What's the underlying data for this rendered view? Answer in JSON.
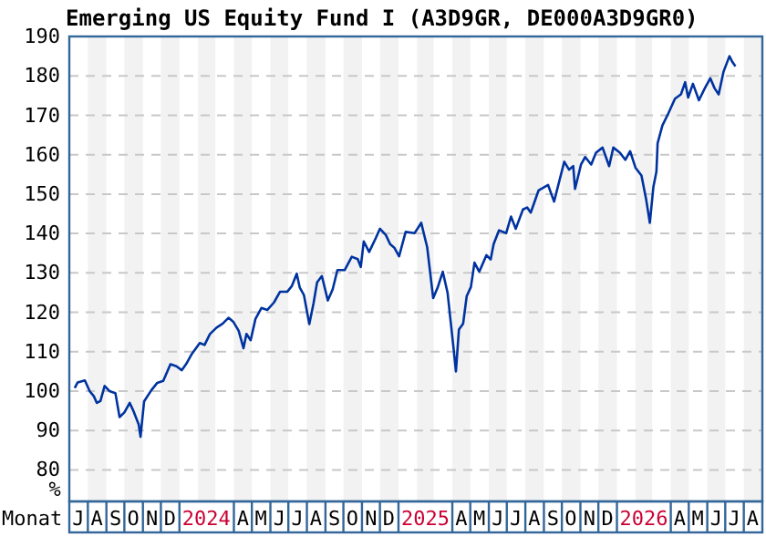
{
  "chart_data": {
    "type": "line",
    "title": "Emerging US Equity Fund I (A3D9GR, DE000A3D9GR0)",
    "xlabel": "Monat",
    "ylabel": "%",
    "x": [
      "2023-07-10",
      "2023-07-15",
      "2023-07-27",
      "2023-08-04",
      "2023-08-11",
      "2023-08-16",
      "2023-08-22",
      "2023-08-29",
      "2023-09-06",
      "2023-09-16",
      "2023-09-23",
      "2023-10-01",
      "2023-10-10",
      "2023-10-16",
      "2023-10-25",
      "2023-10-28",
      "2023-11-03",
      "2023-11-15",
      "2023-11-25",
      "2023-12-05",
      "2023-12-17",
      "2023-12-27",
      "2024-01-05",
      "2024-01-12",
      "2024-01-22",
      "2024-02-04",
      "2024-02-12",
      "2024-02-21",
      "2024-03-03",
      "2024-03-13",
      "2024-03-23",
      "2024-03-31",
      "2024-04-09",
      "2024-04-17",
      "2024-04-22",
      "2024-04-29",
      "2024-05-07",
      "2024-05-17",
      "2024-05-27",
      "2024-06-07",
      "2024-06-17",
      "2024-06-29",
      "2024-07-07",
      "2024-07-15",
      "2024-07-20",
      "2024-07-27",
      "2024-08-05",
      "2024-08-12",
      "2024-08-18",
      "2024-08-26",
      "2024-09-05",
      "2024-09-13",
      "2024-09-21",
      "2024-10-03",
      "2024-10-15",
      "2024-10-25",
      "2024-10-30",
      "2024-11-04",
      "2024-11-13",
      "2024-11-24",
      "2024-12-01",
      "2024-12-11",
      "2024-12-18",
      "2024-12-25",
      "2025-01-02",
      "2025-01-13",
      "2025-01-28",
      "2025-02-08",
      "2025-02-18",
      "2025-02-28",
      "2025-03-08",
      "2025-03-16",
      "2025-03-24",
      "2025-04-03",
      "2025-04-07",
      "2025-04-12",
      "2025-04-19",
      "2025-04-25",
      "2025-05-02",
      "2025-05-08",
      "2025-05-16",
      "2025-05-28",
      "2025-06-04",
      "2025-06-09",
      "2025-06-18",
      "2025-06-30",
      "2025-07-08",
      "2025-07-16",
      "2025-07-28",
      "2025-08-04",
      "2025-08-10",
      "2025-08-23",
      "2025-09-08",
      "2025-09-18",
      "2025-10-05",
      "2025-10-13",
      "2025-10-20",
      "2025-10-23",
      "2025-11-02",
      "2025-11-09",
      "2025-11-19",
      "2025-11-27",
      "2025-12-08",
      "2025-12-19",
      "2025-12-26",
      "2026-01-06",
      "2026-01-15",
      "2026-01-23",
      "2026-02-01",
      "2026-02-11",
      "2026-02-19",
      "2026-02-25",
      "2026-03-03",
      "2026-03-08",
      "2026-03-10",
      "2026-03-18",
      "2026-03-28",
      "2026-04-08",
      "2026-04-18",
      "2026-04-25",
      "2026-04-30",
      "2026-05-08",
      "2026-05-18",
      "2026-05-28",
      "2026-06-06",
      "2026-06-13",
      "2026-06-20",
      "2026-06-28",
      "2026-07-08",
      "2026-07-13",
      "2026-07-18"
    ],
    "series": [
      {
        "color": "#0033a0",
        "values": [
          100.8,
          102.2,
          102.7,
          100,
          98.7,
          97,
          97.5,
          101.3,
          100,
          99.5,
          93.4,
          94.6,
          97,
          95,
          91.5,
          88.4,
          97.4,
          100.2,
          102.1,
          102.6,
          106.8,
          106.3,
          105.3,
          106.8,
          109.5,
          112.2,
          111.7,
          114.5,
          116.1,
          117.1,
          118.6,
          117.6,
          115.3,
          110.9,
          114.5,
          112.9,
          118.3,
          121.1,
          120.6,
          122.5,
          125.2,
          125.2,
          126.7,
          129.8,
          126.3,
          124.4,
          117,
          122.2,
          127.6,
          129.2,
          123,
          125.8,
          130.7,
          130.7,
          134.1,
          133.5,
          131.5,
          138,
          135.3,
          138.8,
          141.2,
          139.6,
          137.3,
          136.4,
          134.2,
          140.4,
          140.1,
          142.7,
          136.5,
          123.6,
          126.5,
          130.3,
          125,
          110.9,
          105,
          115.6,
          117.1,
          124.1,
          126.4,
          132.6,
          130.3,
          134.5,
          133.4,
          137.3,
          140.8,
          140.1,
          144.3,
          141.2,
          146.1,
          146.6,
          145.3,
          150.9,
          152.3,
          148.1,
          158.2,
          156.2,
          157.1,
          151.3,
          157.5,
          159.4,
          157.5,
          160.5,
          161.8,
          157.1,
          161.8,
          160.5,
          158.7,
          160.9,
          156.7,
          154.7,
          148.5,
          142.7,
          151.9,
          155.7,
          162.9,
          167.4,
          170.5,
          174.2,
          175.3,
          178.4,
          174.5,
          178,
          173.8,
          176.9,
          179.4,
          176.9,
          175.3,
          181,
          185,
          183.5,
          182.4
        ]
      }
    ],
    "xlim": [
      "2023-07-01",
      "2026-09-01"
    ],
    "xticks": [
      {
        "value": "2023-07-16",
        "label": "J"
      },
      {
        "value": "2023-08-16",
        "label": "A"
      },
      {
        "value": "2023-09-16",
        "label": "S"
      },
      {
        "value": "2023-10-16",
        "label": "O"
      },
      {
        "value": "2023-11-16",
        "label": "N"
      },
      {
        "value": "2023-12-16",
        "label": "D"
      },
      {
        "value": "2024-02-15",
        "label": "2024"
      },
      {
        "value": "2024-04-16",
        "label": "A"
      },
      {
        "value": "2024-05-16",
        "label": "M"
      },
      {
        "value": "2024-06-16",
        "label": "J"
      },
      {
        "value": "2024-07-16",
        "label": "J"
      },
      {
        "value": "2024-08-16",
        "label": "A"
      },
      {
        "value": "2024-09-16",
        "label": "S"
      },
      {
        "value": "2024-10-16",
        "label": "O"
      },
      {
        "value": "2024-11-16",
        "label": "N"
      },
      {
        "value": "2024-12-16",
        "label": "D"
      },
      {
        "value": "2025-02-15",
        "label": "2025"
      },
      {
        "value": "2025-04-16",
        "label": "A"
      },
      {
        "value": "2025-05-16",
        "label": "M"
      },
      {
        "value": "2025-06-16",
        "label": "J"
      },
      {
        "value": "2025-07-16",
        "label": "J"
      },
      {
        "value": "2025-08-16",
        "label": "A"
      },
      {
        "value": "2025-09-16",
        "label": "S"
      },
      {
        "value": "2025-10-16",
        "label": "O"
      },
      {
        "value": "2025-11-16",
        "label": "N"
      },
      {
        "value": "2025-12-16",
        "label": "D"
      },
      {
        "value": "2026-02-15",
        "label": "2026"
      },
      {
        "value": "2026-04-16",
        "label": "A"
      },
      {
        "value": "2026-05-16",
        "label": "M"
      },
      {
        "value": "2026-06-16",
        "label": "J"
      },
      {
        "value": "2026-07-16",
        "label": "J"
      },
      {
        "value": "2026-08-16",
        "label": "A"
      }
    ],
    "ylim": [
      72,
      190
    ],
    "yticks": [
      80,
      90,
      100,
      110,
      120,
      130,
      140,
      150,
      160,
      170,
      180,
      190
    ],
    "grid": "y",
    "bands": [
      {
        "axis": "x",
        "from": "2023-08-01",
        "to": "2023-09-01",
        "color": "#f2f2f2"
      },
      {
        "axis": "x",
        "from": "2023-10-01",
        "to": "2023-11-01",
        "color": "#f2f2f2"
      },
      {
        "axis": "x",
        "from": "2023-12-01",
        "to": "2024-01-01",
        "color": "#f2f2f2"
      },
      {
        "axis": "x",
        "from": "2024-02-01",
        "to": "2024-03-01",
        "color": "#f2f2f2"
      },
      {
        "axis": "x",
        "from": "2024-04-01",
        "to": "2024-05-01",
        "color": "#f2f2f2"
      },
      {
        "axis": "x",
        "from": "2024-06-01",
        "to": "2024-07-01",
        "color": "#f2f2f2"
      },
      {
        "axis": "x",
        "from": "2024-08-01",
        "to": "2024-09-01",
        "color": "#f2f2f2"
      },
      {
        "axis": "x",
        "from": "2024-10-01",
        "to": "2024-11-01",
        "color": "#f2f2f2"
      },
      {
        "axis": "x",
        "from": "2024-12-01",
        "to": "2025-01-01",
        "color": "#f2f2f2"
      },
      {
        "axis": "x",
        "from": "2025-02-01",
        "to": "2025-03-01",
        "color": "#f2f2f2"
      },
      {
        "axis": "x",
        "from": "2025-04-01",
        "to": "2025-05-01",
        "color": "#f2f2f2"
      },
      {
        "axis": "x",
        "from": "2025-06-01",
        "to": "2025-07-01",
        "color": "#f2f2f2"
      },
      {
        "axis": "x",
        "from": "2025-08-01",
        "to": "2025-09-01",
        "color": "#f2f2f2"
      },
      {
        "axis": "x",
        "from": "2025-10-01",
        "to": "2025-11-01",
        "color": "#f2f2f2"
      },
      {
        "axis": "x",
        "from": "2025-12-01",
        "to": "2026-01-01",
        "color": "#f2f2f2"
      },
      {
        "axis": "x",
        "from": "2026-02-01",
        "to": "2026-03-01",
        "color": "#f2f2f2"
      },
      {
        "axis": "x",
        "from": "2026-04-01",
        "to": "2026-05-01",
        "color": "#f2f2f2"
      },
      {
        "axis": "x",
        "from": "2026-06-01",
        "to": "2026-07-01",
        "color": "#f2f2f2"
      },
      {
        "axis": "x",
        "from": "2026-08-01",
        "to": "2026-09-01",
        "color": "#f2f2f2"
      }
    ]
  }
}
